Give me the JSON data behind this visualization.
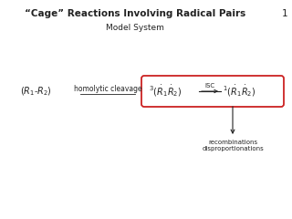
{
  "title": "“Cage” Reactions Involving Radical Pairs",
  "subtitle": "Model System",
  "slide_number": "1",
  "bg_color": "#ffffff",
  "text_color": "#222222",
  "box_color": "#cc2222",
  "title_fontsize": 7.5,
  "subtitle_fontsize": 6.5,
  "body_fontsize": 7.0,
  "small_fontsize": 5.5,
  "tiny_fontsize": 5.0,
  "homolytic_label": "homolytic cleavage",
  "isc_label": "ISC",
  "recomb_label": "recombinations\ndisproportionations"
}
